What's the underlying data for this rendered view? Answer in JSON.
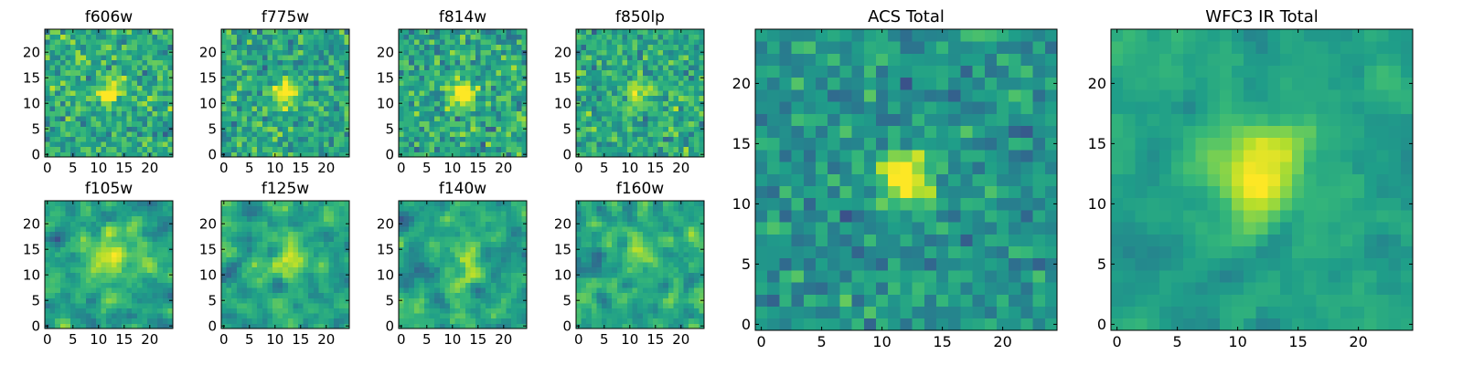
{
  "figure": {
    "layout": "two rows of four small filter cutouts plus two large stacked totals",
    "colormap": "viridis",
    "colors": {
      "background": "#ffffff",
      "frame": "#000000",
      "viridis_stops": [
        "#440154",
        "#3b528b",
        "#21918c",
        "#5ec962",
        "#fde725"
      ]
    }
  },
  "chart_data": [
    {
      "type": "heatmap",
      "title": "f606w",
      "grid": [
        25,
        25
      ],
      "xlim": [
        0,
        24
      ],
      "ylim": [
        0,
        24
      ],
      "xticks": [
        "0",
        "5",
        "10",
        "15",
        "20"
      ],
      "yticks": [
        "0",
        "5",
        "10",
        "15",
        "20"
      ],
      "source_center": [
        12,
        12
      ],
      "source_sigma": 1.5,
      "source_peak": 0.6,
      "mean": 0.62,
      "noise": 0.2,
      "smooth": 0,
      "seed": 11
    },
    {
      "type": "heatmap",
      "title": "f775w",
      "grid": [
        25,
        25
      ],
      "xlim": [
        0,
        24
      ],
      "ylim": [
        0,
        24
      ],
      "xticks": [
        "0",
        "5",
        "10",
        "15",
        "20"
      ],
      "yticks": [
        "0",
        "5",
        "10",
        "15",
        "20"
      ],
      "source_center": [
        12,
        12
      ],
      "source_sigma": 1.5,
      "source_peak": 0.55,
      "mean": 0.6,
      "noise": 0.2,
      "smooth": 0,
      "seed": 23
    },
    {
      "type": "heatmap",
      "title": "f814w",
      "grid": [
        25,
        25
      ],
      "xlim": [
        0,
        24
      ],
      "ylim": [
        0,
        24
      ],
      "xticks": [
        "0",
        "5",
        "10",
        "15",
        "20"
      ],
      "yticks": [
        "0",
        "5",
        "10",
        "15",
        "20"
      ],
      "source_center": [
        12,
        12
      ],
      "source_sigma": 1.6,
      "source_peak": 0.6,
      "mean": 0.6,
      "noise": 0.21,
      "smooth": 0,
      "seed": 37
    },
    {
      "type": "heatmap",
      "title": "f850lp",
      "grid": [
        25,
        25
      ],
      "xlim": [
        0,
        24
      ],
      "ylim": [
        0,
        24
      ],
      "xticks": [
        "0",
        "5",
        "10",
        "15",
        "20"
      ],
      "yticks": [
        "0",
        "5",
        "10",
        "15",
        "20"
      ],
      "source_center": [
        12,
        12
      ],
      "source_sigma": 1.8,
      "source_peak": 0.35,
      "mean": 0.6,
      "noise": 0.2,
      "smooth": 0,
      "seed": 41
    },
    {
      "type": "heatmap",
      "title": "f105w",
      "grid": [
        25,
        25
      ],
      "xlim": [
        0,
        24
      ],
      "ylim": [
        0,
        24
      ],
      "xticks": [
        "0",
        "5",
        "10",
        "15",
        "20"
      ],
      "yticks": [
        "0",
        "5",
        "10",
        "15",
        "20"
      ],
      "source_center": [
        12,
        13
      ],
      "source_sigma": 3.5,
      "source_peak": 0.3,
      "mean": 0.58,
      "noise": 0.23,
      "smooth": 1,
      "seed": 53
    },
    {
      "type": "heatmap",
      "title": "f125w",
      "grid": [
        25,
        25
      ],
      "xlim": [
        0,
        24
      ],
      "ylim": [
        0,
        24
      ],
      "xticks": [
        "0",
        "5",
        "10",
        "15",
        "20"
      ],
      "yticks": [
        "0",
        "5",
        "10",
        "15",
        "20"
      ],
      "source_center": [
        12,
        13
      ],
      "source_sigma": 3.0,
      "source_peak": 0.25,
      "mean": 0.58,
      "noise": 0.25,
      "smooth": 1,
      "seed": 67
    },
    {
      "type": "heatmap",
      "title": "f140w",
      "grid": [
        25,
        25
      ],
      "xlim": [
        0,
        24
      ],
      "ylim": [
        0,
        24
      ],
      "xticks": [
        "0",
        "5",
        "10",
        "15",
        "20"
      ],
      "yticks": [
        "0",
        "5",
        "10",
        "15",
        "20"
      ],
      "source_center": [
        12,
        12
      ],
      "source_sigma": 3.0,
      "source_peak": 0.25,
      "mean": 0.58,
      "noise": 0.25,
      "smooth": 1,
      "seed": 71
    },
    {
      "type": "heatmap",
      "title": "f160w",
      "grid": [
        25,
        25
      ],
      "xlim": [
        0,
        24
      ],
      "ylim": [
        0,
        24
      ],
      "xticks": [
        "0",
        "5",
        "10",
        "15",
        "20"
      ],
      "yticks": [
        "0",
        "5",
        "10",
        "15",
        "20"
      ],
      "source_center": [
        12,
        13
      ],
      "source_sigma": 3.0,
      "source_peak": 0.25,
      "mean": 0.58,
      "noise": 0.25,
      "smooth": 1,
      "seed": 83
    },
    {
      "type": "heatmap",
      "title": "ACS Total",
      "grid": [
        25,
        25
      ],
      "xlim": [
        0,
        24
      ],
      "ylim": [
        0,
        24
      ],
      "xticks": [
        "0",
        "5",
        "10",
        "15",
        "20"
      ],
      "yticks": [
        "0",
        "5",
        "10",
        "15",
        "20"
      ],
      "source_center": [
        12,
        12
      ],
      "source_sigma": 1.4,
      "source_peak": 0.7,
      "mean": 0.52,
      "noise": 0.16,
      "smooth": 0,
      "seed": 97
    },
    {
      "type": "heatmap",
      "title": "WFC3 IR Total",
      "grid": [
        25,
        25
      ],
      "xlim": [
        0,
        24
      ],
      "ylim": [
        0,
        24
      ],
      "xticks": [
        "0",
        "5",
        "10",
        "15",
        "20"
      ],
      "yticks": [
        "0",
        "5",
        "10",
        "15",
        "20"
      ],
      "source_center": [
        12,
        13
      ],
      "source_sigma": 2.5,
      "source_peak": 0.45,
      "mean": 0.58,
      "noise": 0.14,
      "smooth": 1,
      "seed": 101
    }
  ]
}
